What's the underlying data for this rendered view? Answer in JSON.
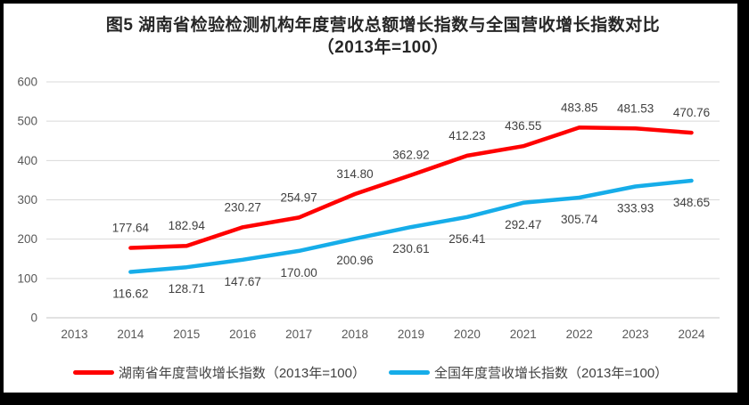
{
  "figure": {
    "title_line1": "图5 湖南省检验检测机构年度营收总额增长指数与全国营收增长指数对比",
    "title_line2": "（2013年=100）"
  },
  "colors": {
    "hunan": "#FF0000",
    "national": "#16ADE9",
    "gridline": "#D9D9D9",
    "axis_line": "#C6C6C6",
    "tick_label": "#595959",
    "data_label": "#404040"
  },
  "chart_data": {
    "type": "line",
    "title": "图5 湖南省检验检测机构年度营收总额增长指数与全国营收增长指数对比（2013年=100）",
    "categories": [
      "2013",
      "2014",
      "2015",
      "2016",
      "2017",
      "2018",
      "2019",
      "2020",
      "2021",
      "2022",
      "2023",
      "2024"
    ],
    "series": [
      {
        "name": "湖南省年度营收增长指数（2013年=100）",
        "color_key": "hunan",
        "x_start_index": 1,
        "label_position": "above",
        "values": [
          177.64,
          182.94,
          230.27,
          254.97,
          314.8,
          362.92,
          412.23,
          436.55,
          483.85,
          481.53,
          470.76
        ]
      },
      {
        "name": "全国年度营收增长指数（2013年=100）",
        "color_key": "national",
        "x_start_index": 1,
        "label_position": "below",
        "values": [
          116.62,
          128.71,
          147.67,
          170.0,
          200.96,
          230.61,
          256.41,
          292.47,
          305.74,
          333.93,
          348.65
        ]
      }
    ],
    "ylim": [
      0,
      600
    ],
    "ytick_step": 100,
    "grid": true,
    "legend_position": "bottom",
    "value_decimals": 2
  }
}
